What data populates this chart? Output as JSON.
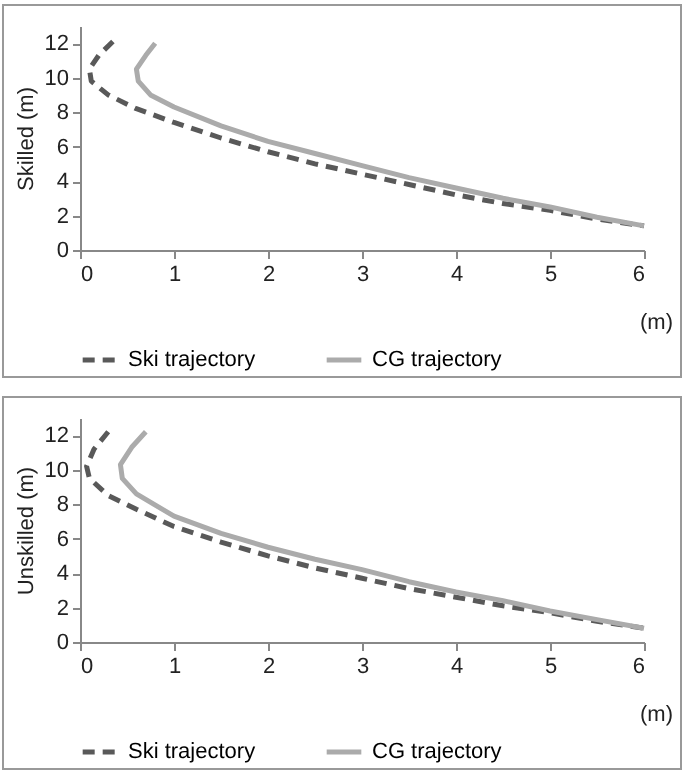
{
  "chart_data": [
    {
      "type": "line",
      "ylabel": "Skilled (m)",
      "xlabel": "(m)",
      "xlim": [
        0,
        6
      ],
      "xticks": [
        0,
        1,
        2,
        3,
        4,
        5,
        6
      ],
      "ylim": [
        0,
        13
      ],
      "yticks": [
        0,
        2,
        4,
        6,
        8,
        10,
        12
      ],
      "legend": "bottom",
      "series": [
        {
          "name": "Ski trajectory",
          "color": "#595959",
          "line_style": "dashed",
          "x": [
            0.35,
            0.2,
            0.1,
            0.12,
            0.3,
            0.6,
            1,
            1.5,
            2,
            2.5,
            3,
            3.5,
            4,
            4.5,
            5,
            5.5,
            6
          ],
          "values": [
            12.1,
            11.3,
            10.5,
            9.8,
            9,
            8.2,
            7.4,
            6.5,
            5.7,
            5.0,
            4.4,
            3.8,
            3.2,
            2.7,
            2.3,
            1.8,
            1.4
          ]
        },
        {
          "name": "CG trajectory",
          "color": "#ababab",
          "line_style": "solid",
          "x": [
            0.8,
            0.7,
            0.6,
            0.62,
            0.75,
            1,
            1.5,
            2,
            2.5,
            3,
            3.5,
            4,
            4.5,
            5,
            5.5,
            6
          ],
          "values": [
            12,
            11.3,
            10.5,
            9.8,
            9,
            8.3,
            7.2,
            6.3,
            5.6,
            4.9,
            4.2,
            3.6,
            3,
            2.5,
            1.9,
            1.4
          ]
        }
      ]
    },
    {
      "type": "line",
      "ylabel": "Unskilled (m)",
      "xlabel": "(m)",
      "xlim": [
        0,
        6
      ],
      "xticks": [
        0,
        1,
        2,
        3,
        4,
        5,
        6
      ],
      "ylim": [
        0,
        13
      ],
      "yticks": [
        0,
        2,
        4,
        6,
        8,
        10,
        12
      ],
      "legend": "bottom",
      "series": [
        {
          "name": "Ski trajectory",
          "color": "#595959",
          "line_style": "dashed",
          "x": [
            0.3,
            0.15,
            0.07,
            0.1,
            0.3,
            0.6,
            1,
            1.5,
            2,
            2.5,
            3,
            3.5,
            4,
            4.5,
            5,
            5.5,
            6
          ],
          "values": [
            12.2,
            11.2,
            10.2,
            9.5,
            8.5,
            7.7,
            6.7,
            5.8,
            5.0,
            4.3,
            3.7,
            3.1,
            2.6,
            2.1,
            1.7,
            1.2,
            0.8
          ]
        },
        {
          "name": "CG trajectory",
          "color": "#ababab",
          "line_style": "solid",
          "x": [
            0.7,
            0.55,
            0.43,
            0.45,
            0.6,
            1,
            1.5,
            2,
            2.5,
            3,
            3.5,
            4,
            4.5,
            5,
            5.5,
            6
          ],
          "values": [
            12.2,
            11.3,
            10.3,
            9.5,
            8.6,
            7.3,
            6.3,
            5.5,
            4.8,
            4.2,
            3.5,
            2.9,
            2.4,
            1.8,
            1.3,
            0.8
          ]
        }
      ]
    }
  ]
}
